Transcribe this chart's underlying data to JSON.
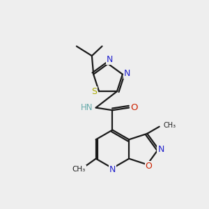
{
  "bg_color": "#eeeeee",
  "bond_color": "#1a1a1a",
  "lw": 1.6,
  "S_color": "#aaaa00",
  "N_color": "#2222cc",
  "O_color": "#cc2200",
  "H_color": "#66aaaa",
  "fs": 9.0,
  "xlim": [
    0,
    6
  ],
  "ylim": [
    0,
    6.5
  ]
}
